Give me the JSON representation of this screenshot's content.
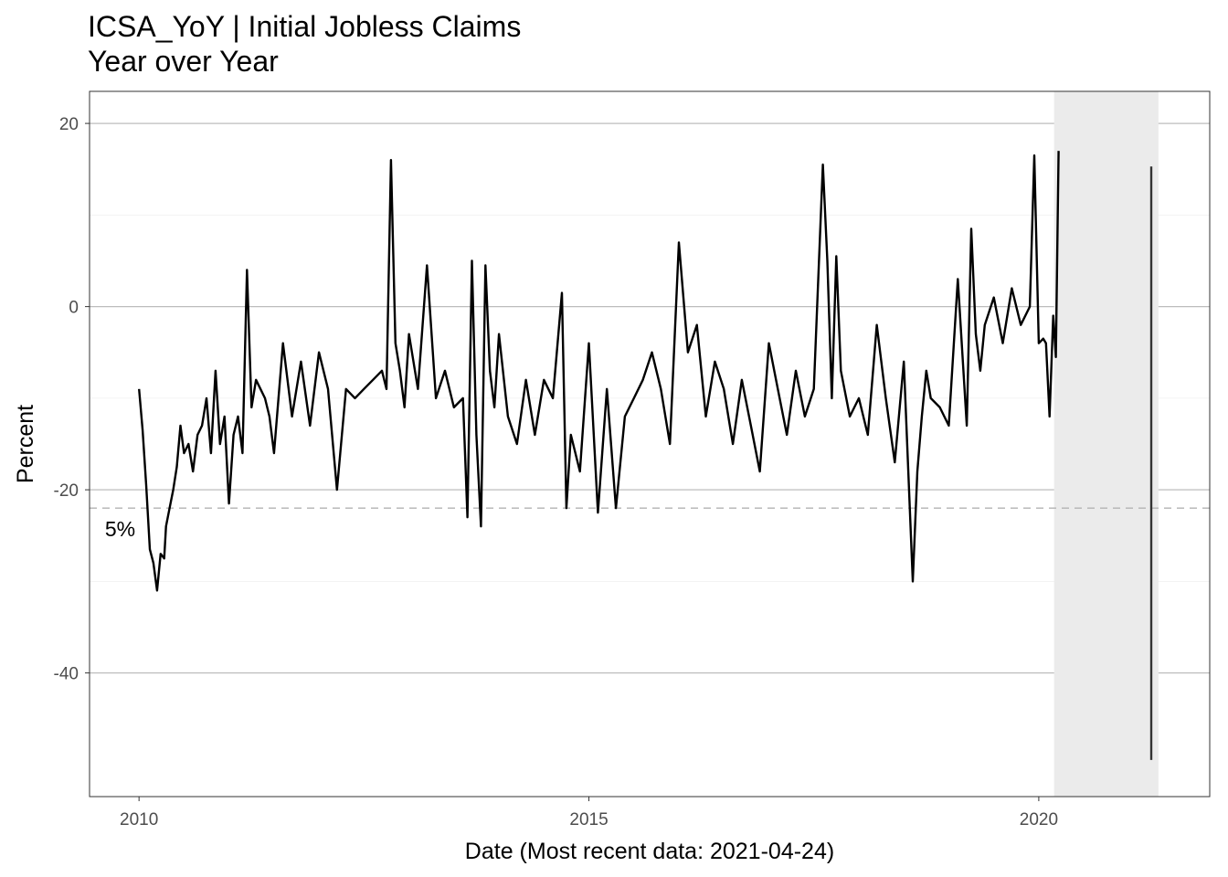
{
  "chart_data": {
    "type": "line",
    "title": "ICSA_YoY | Initial Jobless Claims",
    "subtitle": "Year over Year",
    "xlabel": "Date (Most recent data: 2021-04-24)",
    "ylabel": "Percent",
    "xlim": [
      2009.45,
      2021.9
    ],
    "ylim": [
      -53.5,
      23.5
    ],
    "x_ticks": [
      {
        "value": 2010,
        "label": "2010"
      },
      {
        "value": 2015,
        "label": "2015"
      },
      {
        "value": 2020,
        "label": "2020"
      }
    ],
    "y_ticks": [
      {
        "value": 20,
        "label": "20"
      },
      {
        "value": 0,
        "label": "0"
      },
      {
        "value": -20,
        "label": "-20"
      },
      {
        "value": -40,
        "label": "-40"
      }
    ],
    "grid": true,
    "recession_band": {
      "start": 2020.17,
      "end": 2021.33
    },
    "reference_line": {
      "y": -22,
      "label": "5%",
      "style": "dashed"
    },
    "series": [
      {
        "color": "#000000",
        "x": [
          2010.0,
          2010.04,
          2010.08,
          2010.12,
          2010.16,
          2010.2,
          2010.24,
          2010.28,
          2010.3,
          2010.34,
          2010.38,
          2010.42,
          2010.46,
          2010.5,
          2010.55,
          2010.6,
          2010.65,
          2010.7,
          2010.75,
          2010.8,
          2010.85,
          2010.9,
          2010.95,
          2011.0,
          2011.05,
          2011.1,
          2011.15,
          2011.2,
          2011.25,
          2011.3,
          2011.35,
          2011.4,
          2011.45,
          2011.5,
          2011.6,
          2011.7,
          2011.8,
          2011.9,
          2012.0,
          2012.1,
          2012.2,
          2012.3,
          2012.4,
          2012.5,
          2012.6,
          2012.7,
          2012.75,
          2012.8,
          2012.85,
          2012.9,
          2012.95,
          2013.0,
          2013.1,
          2013.2,
          2013.3,
          2013.4,
          2013.5,
          2013.6,
          2013.65,
          2013.7,
          2013.75,
          2013.8,
          2013.85,
          2013.9,
          2013.95,
          2014.0,
          2014.1,
          2014.2,
          2014.3,
          2014.4,
          2014.5,
          2014.6,
          2014.7,
          2014.75,
          2014.8,
          2014.9,
          2015.0,
          2015.1,
          2015.2,
          2015.3,
          2015.4,
          2015.5,
          2015.6,
          2015.7,
          2015.8,
          2015.9,
          2016.0,
          2016.1,
          2016.2,
          2016.3,
          2016.4,
          2016.5,
          2016.6,
          2016.7,
          2016.8,
          2016.9,
          2017.0,
          2017.1,
          2017.2,
          2017.3,
          2017.4,
          2017.5,
          2017.6,
          2017.65,
          2017.7,
          2017.75,
          2017.8,
          2017.9,
          2018.0,
          2018.1,
          2018.2,
          2018.3,
          2018.4,
          2018.5,
          2018.6,
          2018.65,
          2018.7,
          2018.75,
          2018.8,
          2018.9,
          2019.0,
          2019.1,
          2019.2,
          2019.25,
          2019.3,
          2019.35,
          2019.4,
          2019.5,
          2019.6,
          2019.7,
          2019.8,
          2019.9,
          2019.95,
          2020.0,
          2020.05,
          2020.08,
          2020.12,
          2020.16,
          2020.19,
          2020.22
        ],
        "y": [
          -9.0,
          -13.5,
          -19.5,
          -26.5,
          -28.0,
          -31.0,
          -27.0,
          -27.5,
          -24.0,
          -22.0,
          -20.0,
          -17.5,
          -13.0,
          -16.0,
          -15.0,
          -18.0,
          -14.0,
          -13.0,
          -10.0,
          -16.0,
          -7.0,
          -15.0,
          -12.0,
          -21.5,
          -14.0,
          -12.0,
          -16.0,
          4.0,
          -11.0,
          -8.0,
          -9.0,
          -10.0,
          -12.0,
          -16.0,
          -4.0,
          -12.0,
          -6.0,
          -13.0,
          -5.0,
          -9.0,
          -20.0,
          -9.0,
          -10.0,
          -9.0,
          -8.0,
          -7.0,
          -9.0,
          16.0,
          -4.0,
          -7.0,
          -11.0,
          -3.0,
          -9.0,
          4.5,
          -10.0,
          -7.0,
          -11.0,
          -10.0,
          -23.0,
          5.0,
          -14.0,
          -24.0,
          4.5,
          -7.0,
          -11.0,
          -3.0,
          -12.0,
          -15.0,
          -8.0,
          -14.0,
          -8.0,
          -10.0,
          1.5,
          -22.0,
          -14.0,
          -18.0,
          -4.0,
          -22.5,
          -9.0,
          -22.0,
          -12.0,
          -10.0,
          -8.0,
          -5.0,
          -9.0,
          -15.0,
          7.0,
          -5.0,
          -2.0,
          -12.0,
          -6.0,
          -9.0,
          -15.0,
          -8.0,
          -13.0,
          -18.0,
          -4.0,
          -9.0,
          -14.0,
          -7.0,
          -12.0,
          -9.0,
          15.5,
          5.0,
          -10.0,
          5.5,
          -7.0,
          -12.0,
          -10.0,
          -14.0,
          -2.0,
          -10.0,
          -17.0,
          -6.0,
          -30.0,
          -18.0,
          -12.0,
          -7.0,
          -10.0,
          -11.0,
          -13.0,
          3.0,
          -13.0,
          8.5,
          -3.0,
          -7.0,
          -2.0,
          1.0,
          -4.0,
          2.0,
          -2.0,
          0.0,
          16.5,
          -4.0,
          -3.5,
          -4.0,
          -12.0,
          -1.0,
          -5.5,
          17.0
        ]
      },
      {
        "color": "#333333",
        "x": [
          2021.25,
          2021.25
        ],
        "y": [
          15.3,
          -49.5
        ]
      }
    ]
  }
}
